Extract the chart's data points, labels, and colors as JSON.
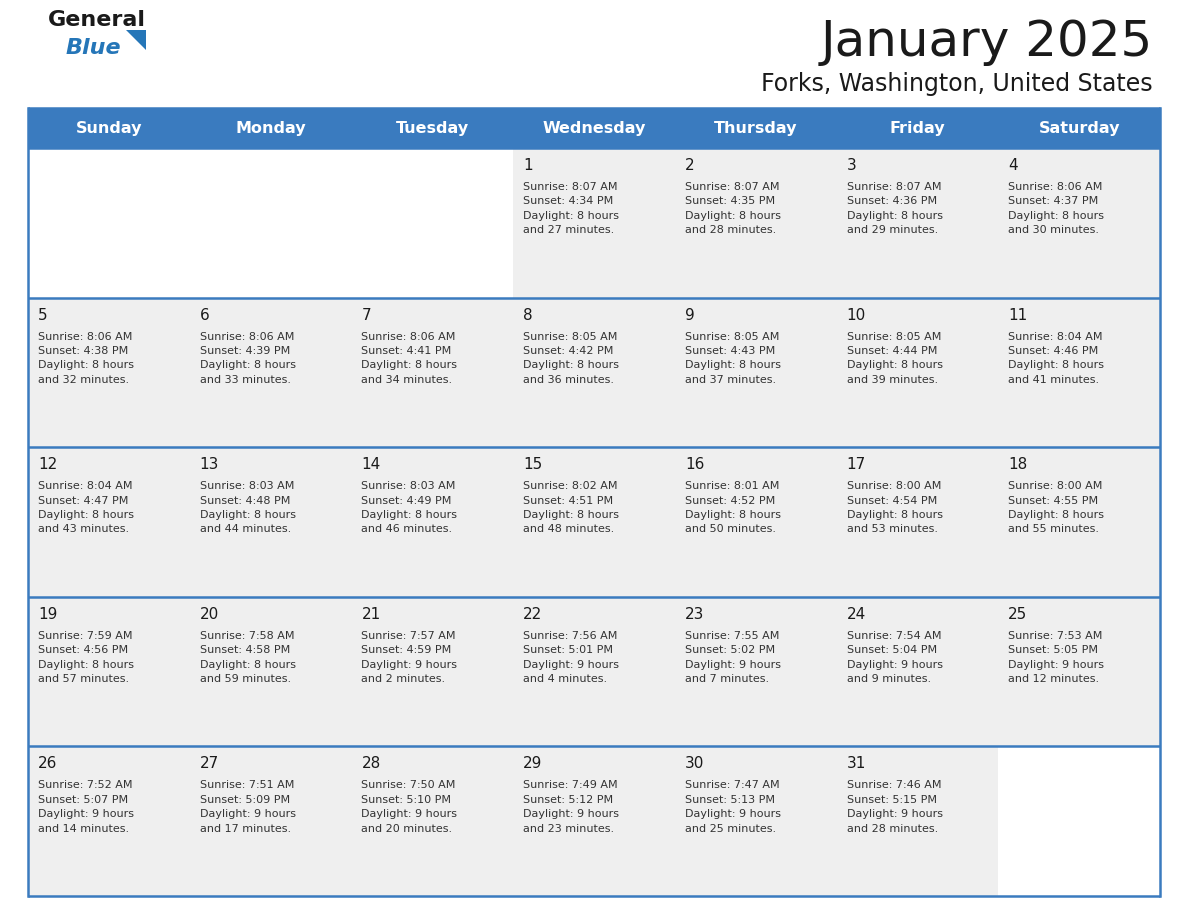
{
  "title": "January 2025",
  "subtitle": "Forks, Washington, United States",
  "header_bg_color": "#3a7bbf",
  "header_text_color": "#ffffff",
  "cell_bg_color": "#efefef",
  "cell_empty_color": "#ffffff",
  "day_number_color": "#1a1a1a",
  "cell_text_color": "#333333",
  "grid_line_color": "#3a7bbf",
  "days_of_week": [
    "Sunday",
    "Monday",
    "Tuesday",
    "Wednesday",
    "Thursday",
    "Friday",
    "Saturday"
  ],
  "weeks": [
    [
      {
        "day": null,
        "info": null
      },
      {
        "day": null,
        "info": null
      },
      {
        "day": null,
        "info": null
      },
      {
        "day": 1,
        "info": "Sunrise: 8:07 AM\nSunset: 4:34 PM\nDaylight: 8 hours\nand 27 minutes."
      },
      {
        "day": 2,
        "info": "Sunrise: 8:07 AM\nSunset: 4:35 PM\nDaylight: 8 hours\nand 28 minutes."
      },
      {
        "day": 3,
        "info": "Sunrise: 8:07 AM\nSunset: 4:36 PM\nDaylight: 8 hours\nand 29 minutes."
      },
      {
        "day": 4,
        "info": "Sunrise: 8:06 AM\nSunset: 4:37 PM\nDaylight: 8 hours\nand 30 minutes."
      }
    ],
    [
      {
        "day": 5,
        "info": "Sunrise: 8:06 AM\nSunset: 4:38 PM\nDaylight: 8 hours\nand 32 minutes."
      },
      {
        "day": 6,
        "info": "Sunrise: 8:06 AM\nSunset: 4:39 PM\nDaylight: 8 hours\nand 33 minutes."
      },
      {
        "day": 7,
        "info": "Sunrise: 8:06 AM\nSunset: 4:41 PM\nDaylight: 8 hours\nand 34 minutes."
      },
      {
        "day": 8,
        "info": "Sunrise: 8:05 AM\nSunset: 4:42 PM\nDaylight: 8 hours\nand 36 minutes."
      },
      {
        "day": 9,
        "info": "Sunrise: 8:05 AM\nSunset: 4:43 PM\nDaylight: 8 hours\nand 37 minutes."
      },
      {
        "day": 10,
        "info": "Sunrise: 8:05 AM\nSunset: 4:44 PM\nDaylight: 8 hours\nand 39 minutes."
      },
      {
        "day": 11,
        "info": "Sunrise: 8:04 AM\nSunset: 4:46 PM\nDaylight: 8 hours\nand 41 minutes."
      }
    ],
    [
      {
        "day": 12,
        "info": "Sunrise: 8:04 AM\nSunset: 4:47 PM\nDaylight: 8 hours\nand 43 minutes."
      },
      {
        "day": 13,
        "info": "Sunrise: 8:03 AM\nSunset: 4:48 PM\nDaylight: 8 hours\nand 44 minutes."
      },
      {
        "day": 14,
        "info": "Sunrise: 8:03 AM\nSunset: 4:49 PM\nDaylight: 8 hours\nand 46 minutes."
      },
      {
        "day": 15,
        "info": "Sunrise: 8:02 AM\nSunset: 4:51 PM\nDaylight: 8 hours\nand 48 minutes."
      },
      {
        "day": 16,
        "info": "Sunrise: 8:01 AM\nSunset: 4:52 PM\nDaylight: 8 hours\nand 50 minutes."
      },
      {
        "day": 17,
        "info": "Sunrise: 8:00 AM\nSunset: 4:54 PM\nDaylight: 8 hours\nand 53 minutes."
      },
      {
        "day": 18,
        "info": "Sunrise: 8:00 AM\nSunset: 4:55 PM\nDaylight: 8 hours\nand 55 minutes."
      }
    ],
    [
      {
        "day": 19,
        "info": "Sunrise: 7:59 AM\nSunset: 4:56 PM\nDaylight: 8 hours\nand 57 minutes."
      },
      {
        "day": 20,
        "info": "Sunrise: 7:58 AM\nSunset: 4:58 PM\nDaylight: 8 hours\nand 59 minutes."
      },
      {
        "day": 21,
        "info": "Sunrise: 7:57 AM\nSunset: 4:59 PM\nDaylight: 9 hours\nand 2 minutes."
      },
      {
        "day": 22,
        "info": "Sunrise: 7:56 AM\nSunset: 5:01 PM\nDaylight: 9 hours\nand 4 minutes."
      },
      {
        "day": 23,
        "info": "Sunrise: 7:55 AM\nSunset: 5:02 PM\nDaylight: 9 hours\nand 7 minutes."
      },
      {
        "day": 24,
        "info": "Sunrise: 7:54 AM\nSunset: 5:04 PM\nDaylight: 9 hours\nand 9 minutes."
      },
      {
        "day": 25,
        "info": "Sunrise: 7:53 AM\nSunset: 5:05 PM\nDaylight: 9 hours\nand 12 minutes."
      }
    ],
    [
      {
        "day": 26,
        "info": "Sunrise: 7:52 AM\nSunset: 5:07 PM\nDaylight: 9 hours\nand 14 minutes."
      },
      {
        "day": 27,
        "info": "Sunrise: 7:51 AM\nSunset: 5:09 PM\nDaylight: 9 hours\nand 17 minutes."
      },
      {
        "day": 28,
        "info": "Sunrise: 7:50 AM\nSunset: 5:10 PM\nDaylight: 9 hours\nand 20 minutes."
      },
      {
        "day": 29,
        "info": "Sunrise: 7:49 AM\nSunset: 5:12 PM\nDaylight: 9 hours\nand 23 minutes."
      },
      {
        "day": 30,
        "info": "Sunrise: 7:47 AM\nSunset: 5:13 PM\nDaylight: 9 hours\nand 25 minutes."
      },
      {
        "day": 31,
        "info": "Sunrise: 7:46 AM\nSunset: 5:15 PM\nDaylight: 9 hours\nand 28 minutes."
      },
      {
        "day": null,
        "info": null
      }
    ]
  ],
  "logo_text_general": "General",
  "logo_text_blue": "Blue",
  "logo_general_color": "#1a1a1a",
  "logo_blue_color": "#2576b8",
  "logo_triangle_color": "#2576b8",
  "fig_width": 11.88,
  "fig_height": 9.18,
  "dpi": 100
}
